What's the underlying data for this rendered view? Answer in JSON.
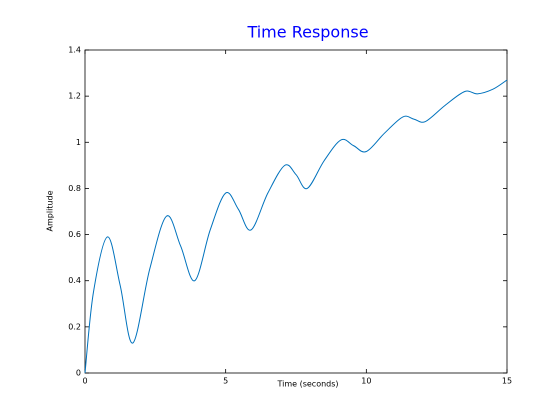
{
  "chart_data": {
    "type": "line",
    "title": "Time Response",
    "xlabel": "Time (seconds)",
    "ylabel": "Amplitude",
    "x": [
      0,
      0.3,
      0.8,
      1.25,
      1.7,
      2.3,
      2.9,
      3.4,
      3.9,
      4.45,
      5.0,
      5.45,
      5.9,
      6.5,
      7.1,
      7.5,
      7.9,
      8.5,
      9.1,
      9.55,
      10.0,
      10.65,
      11.3,
      11.7,
      12.1,
      12.8,
      13.5,
      13.95,
      14.5,
      15
    ],
    "series": [
      {
        "color": "#0072bd",
        "values": [
          0,
          0.35,
          0.59,
          0.38,
          0.13,
          0.45,
          0.68,
          0.55,
          0.4,
          0.62,
          0.78,
          0.71,
          0.62,
          0.78,
          0.9,
          0.86,
          0.8,
          0.92,
          1.01,
          0.985,
          0.96,
          1.04,
          1.11,
          1.1,
          1.09,
          1.16,
          1.22,
          1.21,
          1.23,
          1.27
        ]
      }
    ],
    "xlim": [
      0,
      15
    ],
    "ylim": [
      0,
      1.4
    ],
    "xticks": [
      0,
      5,
      10,
      15
    ],
    "yticks": [
      0,
      0.2,
      0.4,
      0.6,
      0.8,
      1,
      1.2,
      1.4
    ],
    "grid": false
  }
}
